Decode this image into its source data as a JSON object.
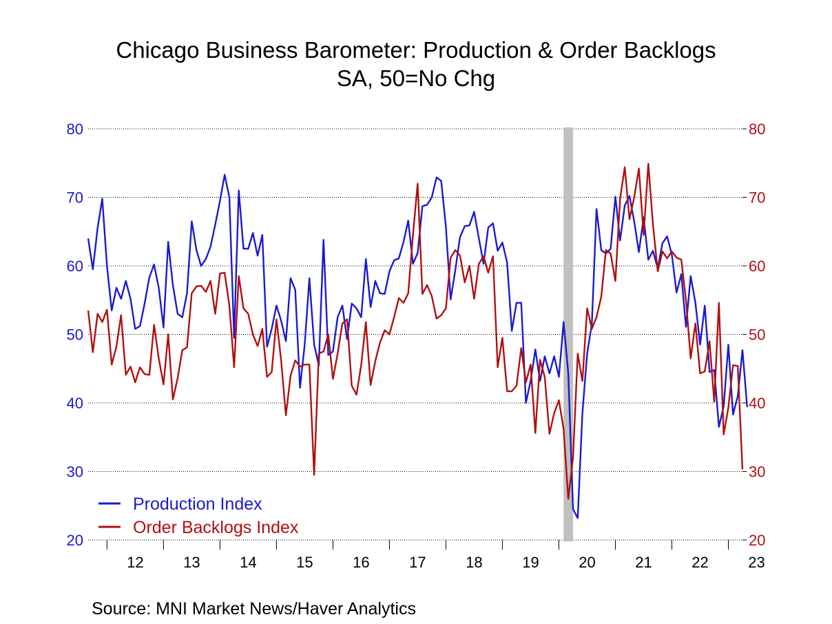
{
  "chart_data": {
    "type": "line",
    "title": "Chicago Business Barometer: Production & Order Backlogs",
    "subtitle": "SA, 50=No Chg",
    "source": "Source:  MNI Market News/Haver Analytics",
    "x_tick_labels": [
      "12",
      "13",
      "14",
      "15",
      "16",
      "17",
      "18",
      "19",
      "20",
      "21",
      "22",
      "23"
    ],
    "ylim_left": [
      20,
      80
    ],
    "ylim_right": [
      20,
      80
    ],
    "y_ticks_left": [
      "80",
      "70",
      "60",
      "50",
      "40",
      "30",
      "20"
    ],
    "y_ticks_right": [
      "80",
      "70",
      "60",
      "50",
      "40",
      "30",
      "20"
    ],
    "grid": "horizontal dotted",
    "legend_position": "bottom-left",
    "recession_shading": {
      "start": "2020-02",
      "end": "2020-04"
    },
    "start_month": "2011-09",
    "series": [
      {
        "name": "Production Index",
        "color": "#1a1ad0",
        "values": [
          64,
          59.5,
          65.5,
          69.8,
          60,
          53.5,
          56.8,
          55.2,
          57.8,
          55.2,
          50.8,
          51.2,
          54.5,
          58.3,
          60.2,
          56.8,
          51,
          63.5,
          57.2,
          53,
          52.5,
          56,
          66.5,
          62.3,
          60,
          61,
          62.8,
          66,
          69.5,
          73.3,
          70,
          49.5,
          71,
          62.5,
          62.5,
          64.8,
          61.5,
          64.5,
          48.2,
          50.8,
          54.2,
          52,
          49,
          58.2,
          56.5,
          42.2,
          48.5,
          58.2,
          48.5,
          45.5,
          63.8,
          47,
          47.5,
          52.5,
          54.2,
          49.3,
          54.5,
          53.8,
          52.5,
          61,
          54,
          57.8,
          56,
          55.9,
          59.2,
          60.8,
          61.1,
          63.5,
          66.6,
          60.3,
          61.9,
          68.7,
          68.9,
          70,
          72.9,
          72.4,
          65.7,
          55.1,
          59.4,
          64.2,
          65.8,
          65.9,
          67.9,
          64,
          60.3,
          65.6,
          66.2,
          62.2,
          63.4,
          60.5,
          50.5,
          54.6,
          54.6,
          40,
          43.2,
          47.8,
          43.2,
          46.8,
          44.3,
          46.8,
          43.8,
          51.8,
          44.3,
          24.5,
          23.2,
          38.5,
          47.2,
          51.5,
          68.3,
          62.3,
          61.8,
          62.5,
          70.1,
          63.7,
          68.8,
          70.2,
          66.5,
          62,
          67.1,
          60.9,
          62.2,
          59.6,
          63.3,
          64.3,
          61.6,
          56.1,
          58.8,
          51.1,
          58.5,
          54.6,
          48.5,
          54.2,
          44.5,
          44.8,
          36.5,
          39.5,
          48.5,
          38.3,
          41,
          47.7,
          39.4
        ]
      },
      {
        "name": "Order Backlogs Index",
        "color": "#b01010",
        "values": [
          53.5,
          47.4,
          53,
          51.8,
          53.6,
          45.6,
          48.2,
          52.8,
          44.1,
          45.3,
          43,
          45.2,
          44.2,
          44.1,
          51.4,
          46.5,
          42.7,
          50,
          40.5,
          43.6,
          47.7,
          48.1,
          56,
          57,
          57.1,
          56.2,
          57.8,
          53,
          58.9,
          59,
          54.2,
          45.2,
          58.5,
          53.8,
          53,
          50,
          48.3,
          50.8,
          43.8,
          44.5,
          52.2,
          46.2,
          38.2,
          44,
          46.2,
          45.3,
          45.6,
          45.6,
          29.5,
          47.2,
          47.5,
          50,
          43.5,
          47.2,
          51.6,
          52.2,
          42.5,
          41.2,
          45.5,
          51.8,
          42.6,
          46.1,
          48.8,
          50.6,
          50,
          52.5,
          55.3,
          54.6,
          56,
          64.5,
          72,
          55.9,
          57.2,
          55.6,
          52.3,
          52.8,
          53.8,
          61.2,
          62.3,
          61.5,
          57.6,
          60,
          55.2,
          60.3,
          61.4,
          59,
          61.4,
          45.2,
          49.5,
          41.7,
          41.7,
          42.5,
          48,
          43,
          45.6,
          35.6,
          46.3,
          43.8,
          35.5,
          38.5,
          40.4,
          36.2,
          26,
          32,
          47.2,
          43.2,
          53.8,
          50.8,
          52.5,
          55.5,
          62.3,
          61.8,
          57.8,
          69.8,
          74.4,
          66.8,
          70,
          74.2,
          64.5,
          74.9,
          66,
          59.2,
          62.1,
          61.1,
          62.1,
          61.2,
          60.9,
          55,
          46.5,
          51.6,
          44.3,
          44.6,
          49,
          40.2,
          54.6,
          35.4,
          39.3,
          45.5,
          45.4,
          30.3
        ]
      }
    ]
  }
}
